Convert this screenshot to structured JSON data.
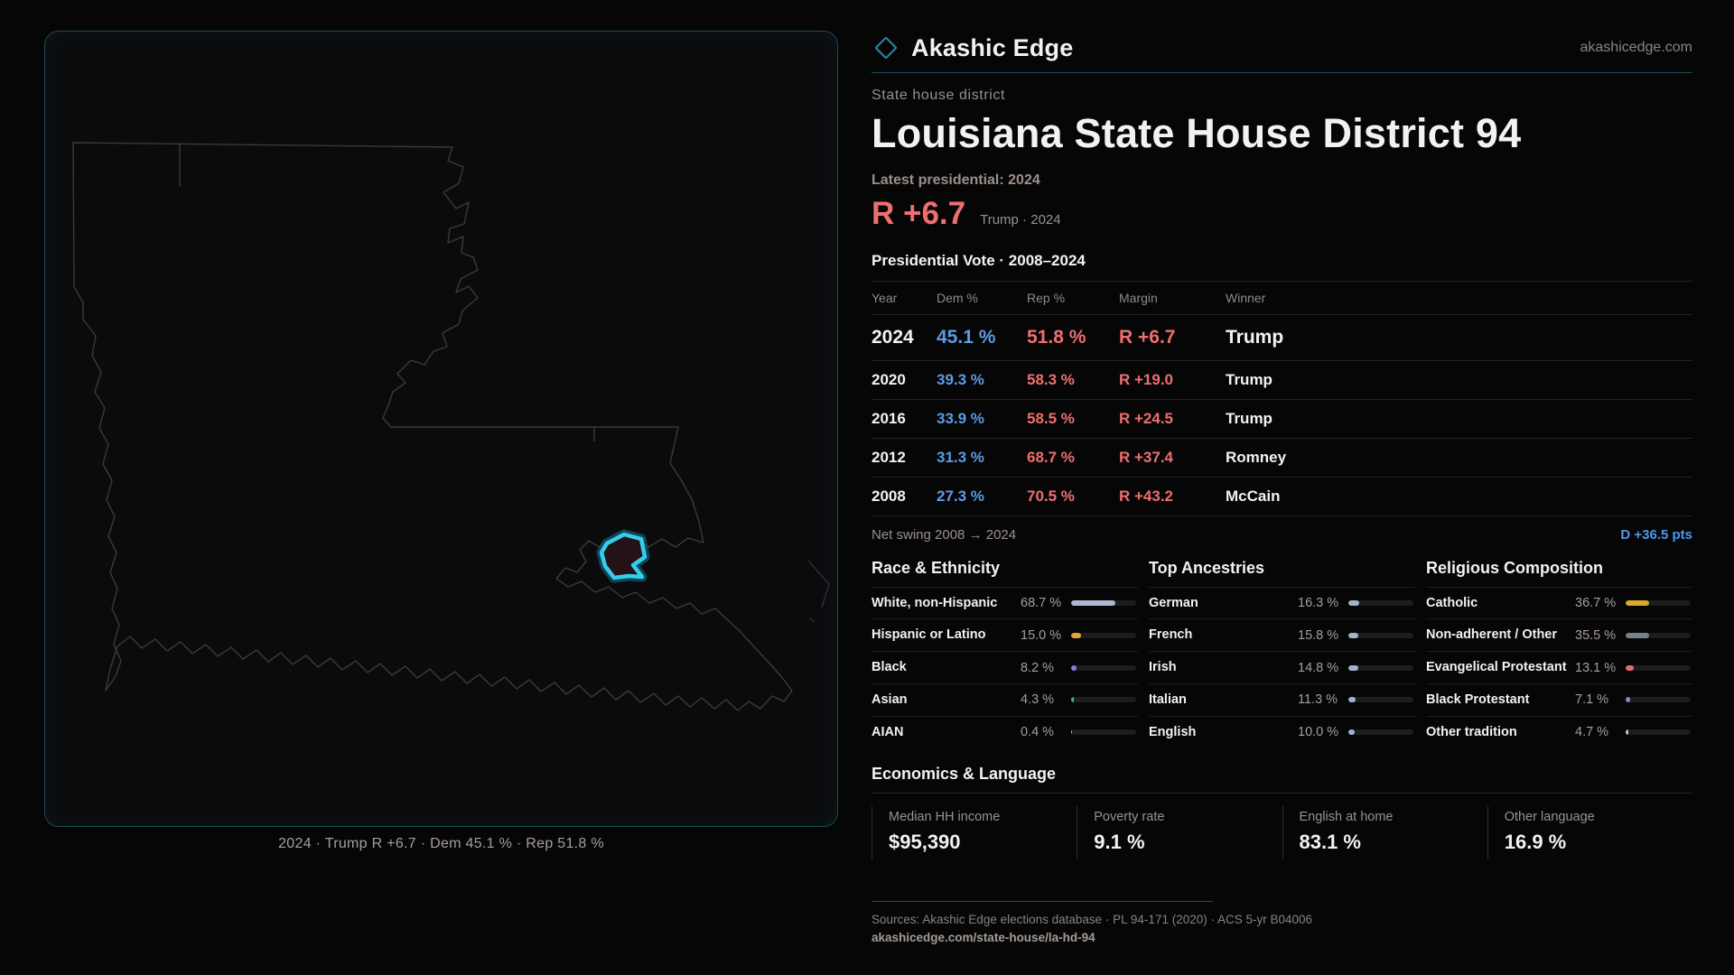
{
  "brand": {
    "name": "Akashic Edge",
    "domain": "akashicedge.com"
  },
  "eyebrow": "State house district",
  "title": "Louisiana State House District 94",
  "latest_label": "Latest presidential: 2024",
  "headline": {
    "margin": "R +6.7",
    "context": "Trump · 2024"
  },
  "map": {
    "caption": "2024 · Trump R +6.7 · Dem 45.1 % · Rep 51.8 %"
  },
  "table": {
    "title": "Presidential Vote · 2008–2024",
    "columns": [
      "Year",
      "Dem %",
      "Rep %",
      "Margin",
      "Winner"
    ],
    "rows": [
      {
        "year": "2024",
        "dem": "45.1 %",
        "rep": "51.8 %",
        "margin": "R +6.7",
        "winner": "Trump"
      },
      {
        "year": "2020",
        "dem": "39.3 %",
        "rep": "58.3 %",
        "margin": "R +19.0",
        "winner": "Trump"
      },
      {
        "year": "2016",
        "dem": "33.9 %",
        "rep": "58.5 %",
        "margin": "R +24.5",
        "winner": "Trump"
      },
      {
        "year": "2012",
        "dem": "31.3 %",
        "rep": "68.7 %",
        "margin": "R +37.4",
        "winner": "Romney"
      },
      {
        "year": "2008",
        "dem": "27.3 %",
        "rep": "70.5 %",
        "margin": "R +43.2",
        "winner": "McCain"
      }
    ]
  },
  "net_swing": {
    "label": "Net swing 2008 → 2024",
    "value": "D +36.5 pts"
  },
  "demographics": {
    "race": {
      "title": "Race & Ethnicity",
      "rows": [
        {
          "label": "White, non-Hispanic",
          "display": "68.7 %",
          "value": 68.7,
          "color": "#a9b9cf"
        },
        {
          "label": "Hispanic or Latino",
          "display": "15.0 %",
          "value": 15.0,
          "color": "#e8a23c"
        },
        {
          "label": "Black",
          "display": "8.2 %",
          "value": 8.2,
          "color": "#8d7fe0"
        },
        {
          "label": "Asian",
          "display": "4.3 %",
          "value": 4.3,
          "color": "#2fbf8f"
        },
        {
          "label": "AIAN",
          "display": "0.4 %",
          "value": 0.4,
          "color": "#bdbdbd"
        }
      ]
    },
    "ancestry": {
      "title": "Top Ancestries",
      "rows": [
        {
          "label": "German",
          "display": "16.3 %",
          "value": 16.3,
          "color": "#9fb3cc"
        },
        {
          "label": "French",
          "display": "15.8 %",
          "value": 15.8,
          "color": "#9fb3cc"
        },
        {
          "label": "Irish",
          "display": "14.8 %",
          "value": 14.8,
          "color": "#9fb3cc"
        },
        {
          "label": "Italian",
          "display": "11.3 %",
          "value": 11.3,
          "color": "#9fb3cc"
        },
        {
          "label": "English",
          "display": "10.0 %",
          "value": 10.0,
          "color": "#9fb3cc"
        }
      ]
    },
    "religion": {
      "title": "Religious Composition",
      "rows": [
        {
          "label": "Catholic",
          "display": "36.7 %",
          "value": 36.7,
          "color": "#d9a928"
        },
        {
          "label": "Non-adherent / Other",
          "display": "35.5 %",
          "value": 35.5,
          "color": "#76808f"
        },
        {
          "label": "Evangelical Protestant",
          "display": "13.1 %",
          "value": 13.1,
          "color": "#e06f6f"
        },
        {
          "label": "Black Protestant",
          "display": "7.1 %",
          "value": 7.1,
          "color": "#8d7fe0"
        },
        {
          "label": "Other tradition",
          "display": "4.7 %",
          "value": 4.7,
          "color": "#c9c9c9"
        }
      ]
    }
  },
  "economics": {
    "title": "Economics & Language",
    "stats": [
      {
        "label": "Median HH income",
        "value": "$95,390"
      },
      {
        "label": "Poverty rate",
        "value": "9.1 %"
      },
      {
        "label": "English at home",
        "value": "83.1 %"
      },
      {
        "label": "Other language",
        "value": "16.9 %"
      }
    ]
  },
  "footer": {
    "sources": "Sources: Akashic Edge elections database · PL 94-171 (2020) · ACS 5-yr B04006",
    "url": "akashicedge.com/state-house/la-hd-94"
  },
  "colors": {
    "accent_teal": "#2b7f95",
    "dem_blue": "#5b9ce4",
    "rep_red": "#ee6f6f",
    "swing_blue": "#4f97e8",
    "district_cyan": "#35cdeb"
  }
}
